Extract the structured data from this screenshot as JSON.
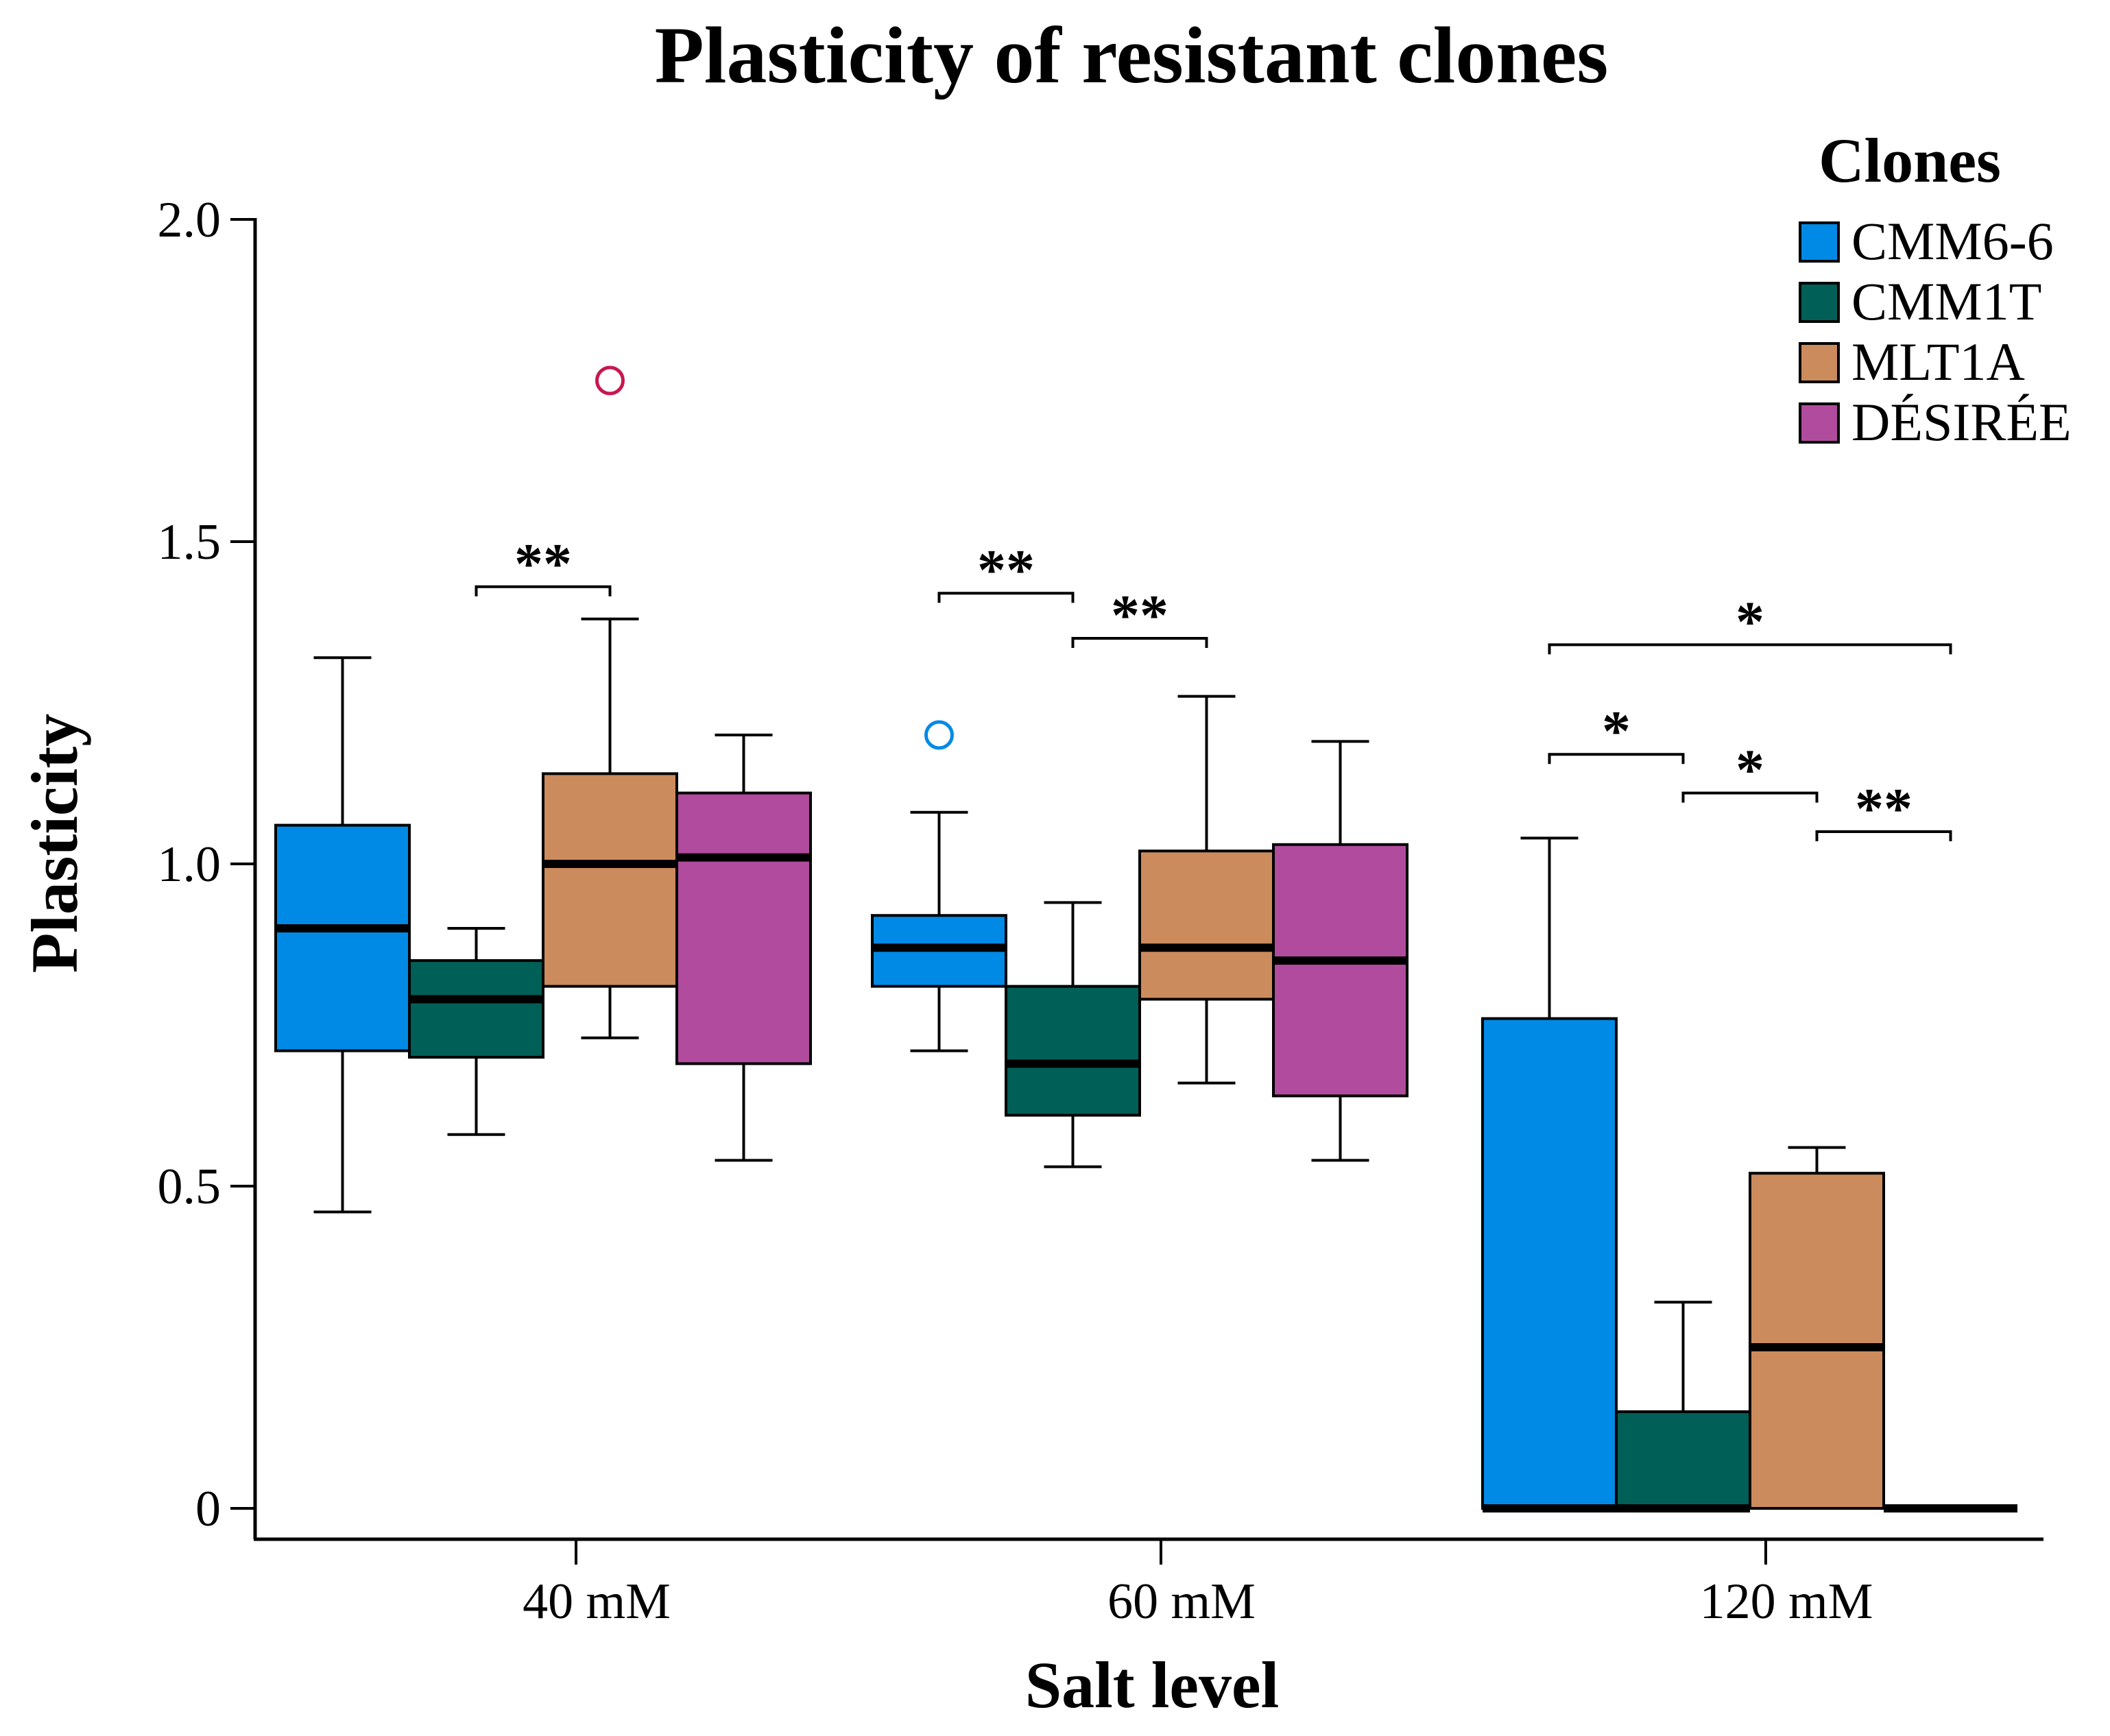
{
  "chart_data": {
    "type": "box",
    "title": "Plasticity of resistant clones",
    "xlabel": "Salt level",
    "ylabel": "Plasticity",
    "ylim": [
      0,
      2.0
    ],
    "yticks": [
      "0",
      "0.5",
      "1.0",
      "1.5",
      "2.0"
    ],
    "yticks_values": [
      0,
      0.5,
      1.0,
      1.5,
      2.0
    ],
    "categories": [
      "40 mM",
      "60 mM",
      "120 mM"
    ],
    "legend": {
      "title": "Clones",
      "position": "top-right"
    },
    "series": [
      {
        "name": "CMM6-6",
        "color": "#008ae6",
        "boxes": [
          {
            "min": 0.46,
            "q1": 0.71,
            "median": 0.9,
            "q3": 1.06,
            "max": 1.32
          },
          {
            "min": 0.71,
            "q1": 0.81,
            "median": 0.87,
            "q3": 0.92,
            "max": 1.08
          },
          {
            "min": 0.0,
            "q1": 0.0,
            "median": 0.0,
            "q3": 0.76,
            "max": 1.04
          }
        ],
        "outliers": [
          {
            "category": "60 mM",
            "value": 1.2
          }
        ]
      },
      {
        "name": "CMM1T",
        "color": "#005f57",
        "boxes": [
          {
            "min": 0.58,
            "q1": 0.7,
            "median": 0.79,
            "q3": 0.85,
            "max": 0.9
          },
          {
            "min": 0.53,
            "q1": 0.61,
            "median": 0.69,
            "q3": 0.81,
            "max": 0.94
          },
          {
            "min": 0.0,
            "q1": 0.0,
            "median": 0.0,
            "q3": 0.15,
            "max": 0.32
          }
        ],
        "outliers": []
      },
      {
        "name": "MLT1A",
        "color": "#cc8b5c",
        "boxes": [
          {
            "min": 0.73,
            "q1": 0.81,
            "median": 1.0,
            "q3": 1.14,
            "max": 1.38
          },
          {
            "min": 0.66,
            "q1": 0.79,
            "median": 0.87,
            "q3": 1.02,
            "max": 1.26
          },
          {
            "min": 0.0,
            "q1": 0.0,
            "median": 0.25,
            "q3": 0.52,
            "max": 0.56
          }
        ],
        "outliers": [
          {
            "category": "40 mM",
            "value": 1.75
          }
        ]
      },
      {
        "name": "DÉSIRÉE",
        "color": "#b04b9d",
        "boxes": [
          {
            "min": 0.54,
            "q1": 0.69,
            "median": 1.01,
            "q3": 1.11,
            "max": 1.2
          },
          {
            "min": 0.54,
            "q1": 0.64,
            "median": 0.85,
            "q3": 1.03,
            "max": 1.19
          },
          {
            "min": 0.0,
            "q1": 0.0,
            "median": 0.0,
            "q3": 0.0,
            "max": 0.0
          }
        ],
        "outliers": []
      }
    ],
    "significance": [
      {
        "category": "40 mM",
        "from": "CMM1T",
        "to": "MLT1A",
        "label": "**",
        "y": 1.43
      },
      {
        "category": "60 mM",
        "from": "CMM6-6",
        "to": "CMM1T",
        "label": "**",
        "y": 1.42
      },
      {
        "category": "60 mM",
        "from": "CMM1T",
        "to": "MLT1A",
        "label": "**",
        "y": 1.35
      },
      {
        "category": "120 mM",
        "from": "CMM6-6",
        "to": "DÉSIRÉE",
        "label": "*",
        "y": 1.34
      },
      {
        "category": "120 mM",
        "from": "CMM6-6",
        "to": "CMM1T",
        "label": "*",
        "y": 1.17
      },
      {
        "category": "120 mM",
        "from": "CMM1T",
        "to": "MLT1A",
        "label": "*",
        "y": 1.11
      },
      {
        "category": "120 mM",
        "from": "MLT1A",
        "to": "DÉSIRÉE",
        "label": "**",
        "y": 1.05
      }
    ]
  }
}
